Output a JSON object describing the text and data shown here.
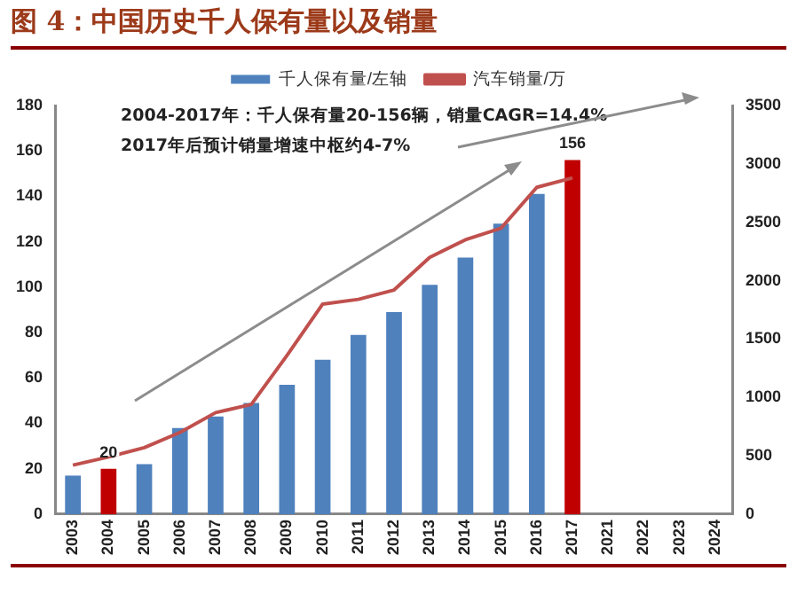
{
  "chart_data": {
    "type": "bar",
    "title": "图 4：中国历史千人保有量以及销量",
    "categories": [
      "2003",
      "2004",
      "2005",
      "2006",
      "2007",
      "2008",
      "2009",
      "2010",
      "2011",
      "2012",
      "2013",
      "2014",
      "2015",
      "2016",
      "2017",
      "2021",
      "2022",
      "2023",
      "2024"
    ],
    "series": [
      {
        "name": "千人保有量/左轴",
        "colors": [
          "#4f81bd",
          "#c00000",
          "#4f81bd",
          "#4f81bd",
          "#4f81bd",
          "#4f81bd",
          "#4f81bd",
          "#4f81bd",
          "#4f81bd",
          "#4f81bd",
          "#4f81bd",
          "#4f81bd",
          "#4f81bd",
          "#4f81bd",
          "#c00000",
          "#4f81bd",
          "#4f81bd",
          "#4f81bd",
          "#4f81bd"
        ],
        "values": [
          17,
          20,
          22,
          38,
          43,
          49,
          57,
          68,
          79,
          89,
          101,
          113,
          128,
          141,
          156,
          null,
          null,
          null,
          null
        ],
        "value_labels": [
          null,
          "20",
          null,
          null,
          null,
          null,
          null,
          null,
          null,
          null,
          null,
          null,
          null,
          null,
          "156",
          null,
          null,
          null,
          null
        ]
      },
      {
        "name": "汽车销量/万",
        "type": "line",
        "axis": "y2",
        "color": "#c0504d",
        "values": [
          420,
          490,
          570,
          700,
          870,
          940,
          1360,
          1800,
          1840,
          1920,
          2200,
          2350,
          2450,
          2800,
          2880,
          null,
          null,
          null,
          null
        ]
      }
    ],
    "ylim": [
      0,
      180
    ],
    "yticks": [
      0,
      20,
      40,
      60,
      80,
      100,
      120,
      140,
      160,
      180
    ],
    "y2lim": [
      0,
      3500
    ],
    "y2ticks": [
      0,
      500,
      1000,
      1500,
      2000,
      2500,
      3000,
      3500
    ],
    "grid": false,
    "legend": "top",
    "marker": "none",
    "line_style": "solid",
    "annotations": [
      "2004-2017年：千人保有量20-156辆，销量CAGR=14.4%",
      "2017年后预计销量增速中枢约4-7%"
    ]
  }
}
